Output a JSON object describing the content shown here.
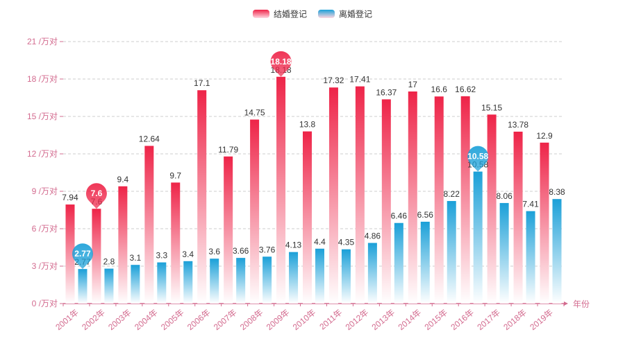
{
  "chart_data": {
    "type": "bar",
    "title": "",
    "xlabel": "年份",
    "ylabel": "",
    "y_unit_suffix": " /万对",
    "ylim": [
      0,
      21
    ],
    "yticks": [
      0,
      3,
      6,
      9,
      12,
      15,
      18,
      21
    ],
    "grid": true,
    "legend_position": "top-center",
    "categories": [
      "2001年",
      "2002年",
      "2003年",
      "2004年",
      "2005年",
      "2006年",
      "2007年",
      "2008年",
      "2009年",
      "2010年",
      "2011年",
      "2012年",
      "2013年",
      "2014年",
      "2015年",
      "2016年",
      "2017年",
      "2018年",
      "2019年"
    ],
    "series": [
      {
        "name": "结婚登记",
        "values": [
          7.94,
          7.6,
          9.4,
          12.64,
          9.7,
          17.1,
          11.79,
          14.75,
          18.18,
          13.8,
          17.32,
          17.41,
          16.37,
          17,
          16.6,
          16.62,
          15.15,
          13.78,
          12.9
        ],
        "color_top": "#ee2448",
        "color_bottom": "#ffffff",
        "markers": [
          {
            "index": 1,
            "label": "7.6"
          },
          {
            "index": 8,
            "label": "18.18"
          }
        ]
      },
      {
        "name": "离婚登记",
        "values": [
          2.77,
          2.8,
          3.1,
          3.3,
          3.4,
          3.6,
          3.66,
          3.76,
          4.13,
          4.4,
          4.35,
          4.86,
          6.46,
          6.56,
          8.22,
          10.58,
          8.06,
          7.41,
          8.38
        ],
        "color_top": "#1ba0d8",
        "color_bottom": "#ffffff",
        "markers": [
          {
            "index": 0,
            "label": "2.77"
          },
          {
            "index": 15,
            "label": "10.58"
          }
        ]
      }
    ],
    "axis_color": "#d36b8f",
    "label_color": "#333333"
  }
}
